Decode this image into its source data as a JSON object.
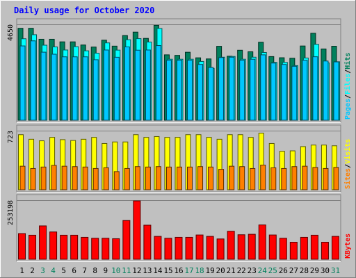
{
  "title": "Daily usage for October 2020",
  "colors": {
    "background": "#c0c0c0",
    "title": "#0000ff",
    "hits": "#00805c",
    "files": "#00ffff",
    "pages": "#00c8ff",
    "visits": "#ffff00",
    "sites": "#ff8000",
    "kbytes": "#ff0000",
    "gridline": "#808080",
    "weekend_label": "#00805c",
    "weekday_label": "#000000"
  },
  "chart_data": [
    {
      "type": "bar",
      "panel": "hits-files-pages",
      "y_max_label": "4650",
      "ylim": [
        0,
        4650
      ],
      "right_legend": [
        {
          "text": "Pages",
          "color": "#00c8ff"
        },
        {
          "text": "/",
          "color": "#000000"
        },
        {
          "text": "Files",
          "color": "#00ffff"
        },
        {
          "text": "/",
          "color": "#000000"
        },
        {
          "text": "Hits",
          "color": "#00805c"
        }
      ],
      "categories": [
        "1",
        "2",
        "3",
        "4",
        "5",
        "6",
        "7",
        "8",
        "9",
        "10",
        "11",
        "12",
        "13",
        "14",
        "15",
        "16",
        "17",
        "18",
        "19",
        "20",
        "21",
        "22",
        "23",
        "24",
        "25",
        "26",
        "27",
        "28",
        "29",
        "30",
        "31"
      ],
      "series": [
        {
          "name": "Hits",
          "values": [
            4458,
            4458,
            3927,
            3927,
            3801,
            3801,
            3648,
            3549,
            3882,
            3594,
            4107,
            4272,
            3969,
            4602,
            3171,
            3144,
            3297,
            3027,
            2973,
            3585,
            3105,
            3393,
            3321,
            3783,
            3087,
            3030,
            3006,
            3600,
            4218,
            3456,
            3588
          ]
        },
        {
          "name": "Files",
          "values": [
            3951,
            4147,
            3639,
            3555,
            3405,
            3567,
            3366,
            3252,
            3750,
            3399,
            3903,
            3957,
            3792,
            4449,
            2958,
            2958,
            2958,
            2850,
            2517,
            3057,
            3093,
            2958,
            3057,
            3285,
            2805,
            2805,
            2649,
            3018,
            3678,
            2781,
            2835
          ]
        },
        {
          "name": "Pages",
          "values": [
            3603,
            3849,
            3300,
            3201,
            3075,
            3075,
            3075,
            2934,
            3405,
            3054,
            3555,
            3396,
            3405,
            3621,
            2907,
            2907,
            2907,
            2706,
            2559,
            3039,
            3057,
            2907,
            2958,
            3171,
            2772,
            2706,
            2616,
            2907,
            3078,
            2871,
            2829
          ]
        }
      ]
    },
    {
      "type": "bar",
      "panel": "visits-sites",
      "y_max_label": "723",
      "ylim": [
        0,
        723
      ],
      "right_legend": [
        {
          "text": "Sites",
          "color": "#ff8000"
        },
        {
          "text": "/",
          "color": "#000000"
        },
        {
          "text": "Visits",
          "color": "#ffff00"
        }
      ],
      "categories": [
        "1",
        "2",
        "3",
        "4",
        "5",
        "6",
        "7",
        "8",
        "9",
        "10",
        "11",
        "12",
        "13",
        "14",
        "15",
        "16",
        "17",
        "18",
        "19",
        "20",
        "21",
        "22",
        "23",
        "24",
        "25",
        "26",
        "27",
        "28",
        "29",
        "30",
        "31"
      ],
      "series": [
        {
          "name": "Visits",
          "values": [
            674,
            618,
            599,
            641,
            613,
            603,
            618,
            641,
            566,
            585,
            585,
            674,
            641,
            651,
            641,
            641,
            674,
            674,
            641,
            618,
            674,
            674,
            641,
            693,
            566,
            471,
            476,
            528,
            547,
            547,
            538
          ]
        },
        {
          "name": "Sites",
          "values": [
            288,
            260,
            278,
            298,
            288,
            283,
            278,
            260,
            269,
            222,
            260,
            283,
            278,
            283,
            278,
            278,
            278,
            283,
            278,
            250,
            288,
            283,
            260,
            302,
            269,
            260,
            283,
            288,
            273,
            260,
            273
          ]
        }
      ]
    },
    {
      "type": "bar",
      "panel": "kbytes",
      "y_max_label": "253198",
      "ylim": [
        0,
        253198
      ],
      "right_legend": [
        {
          "text": "KBytes",
          "color": "#ff0000"
        }
      ],
      "categories": [
        "1",
        "2",
        "3",
        "4",
        "5",
        "6",
        "7",
        "8",
        "9",
        "10",
        "11",
        "12",
        "13",
        "14",
        "15",
        "16",
        "17",
        "18",
        "19",
        "20",
        "21",
        "22",
        "23",
        "24",
        "25",
        "26",
        "27",
        "28",
        "29",
        "30",
        "31"
      ],
      "series": [
        {
          "name": "KBytes",
          "values": [
            110000,
            103000,
            143000,
            117000,
            103000,
            103000,
            94000,
            90000,
            90000,
            88000,
            166000,
            250000,
            146000,
            98000,
            90000,
            94000,
            94000,
            104000,
            98000,
            87000,
            120000,
            105000,
            107000,
            147000,
            104000,
            90000,
            73000,
            94000,
            103000,
            73000,
            98000
          ]
        }
      ]
    }
  ],
  "x_axis": {
    "labels": [
      "1",
      "2",
      "3",
      "4",
      "5",
      "6",
      "7",
      "8",
      "9",
      "10",
      "11",
      "12",
      "13",
      "14",
      "15",
      "16",
      "17",
      "18",
      "19",
      "20",
      "21",
      "22",
      "23",
      "24",
      "25",
      "26",
      "27",
      "28",
      "29",
      "30",
      "31"
    ],
    "weekend": [
      false,
      false,
      true,
      true,
      false,
      false,
      false,
      false,
      false,
      true,
      true,
      false,
      false,
      false,
      false,
      false,
      true,
      true,
      false,
      false,
      false,
      false,
      false,
      true,
      true,
      false,
      false,
      false,
      false,
      false,
      true
    ]
  }
}
